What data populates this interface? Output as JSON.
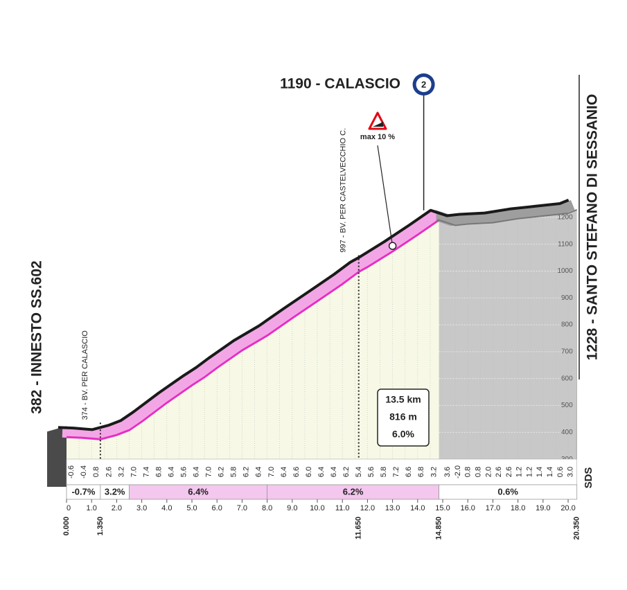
{
  "chart_data": {
    "type": "profile",
    "title": "1190 - CALASCIO",
    "summit_badge": "2",
    "summit_x": 14.85,
    "start_label": "382 - INNESTO SS.602",
    "finish_label": "1228 - SANTO STEFANO DI SESSANIO",
    "annotations": [
      {
        "text": "374 - BV. PER CALASCIO",
        "x": 1.35
      },
      {
        "text": "997 - BV. PER CASTELVECCHIO C.",
        "x": 11.65
      }
    ],
    "max_label": "max 10 %",
    "max_x": 13,
    "stats": [
      "13.5 km",
      "816 m",
      "6.0%"
    ],
    "logo": "SDS",
    "color": "#e62ec4",
    "x": [
      0,
      0.6,
      1.35,
      2.0,
      2.5,
      3.0,
      4.0,
      5.0,
      5.5,
      6.0,
      7.0,
      8.0,
      9.0,
      10.0,
      11.0,
      11.65,
      12.0,
      13.0,
      14.0,
      14.85,
      15.5,
      16.0,
      17.0,
      18.0,
      19.0,
      20.0,
      20.35
    ],
    "values": [
      382,
      380,
      374,
      390,
      408,
      440,
      510,
      575,
      605,
      640,
      705,
      760,
      825,
      888,
      952,
      997,
      1015,
      1073,
      1135,
      1190,
      1170,
      1175,
      1180,
      1195,
      1205,
      1215,
      1228
    ],
    "xlim": [
      0,
      20.35
    ],
    "ylim": [
      205,
      1300
    ],
    "xticks": [
      0,
      {
        "value": 1,
        "label": "1.0"
      },
      {
        "value": 2,
        "label": "2.0"
      },
      {
        "value": 3,
        "label": "3.0"
      },
      {
        "value": 4,
        "label": "4.0"
      },
      {
        "value": 5,
        "label": "5.0"
      },
      {
        "value": 6,
        "label": "6.0"
      },
      {
        "value": 7,
        "label": "7.0"
      },
      {
        "value": 8,
        "label": "8.0"
      },
      {
        "value": 9,
        "label": "9.0"
      },
      {
        "value": 10,
        "label": "10.0"
      },
      {
        "value": 11,
        "label": "11.0"
      },
      {
        "value": 12,
        "label": "12.0"
      },
      {
        "value": 13,
        "label": "13.0"
      },
      {
        "value": 14,
        "label": "14.0"
      },
      {
        "value": 15,
        "label": "15.0"
      },
      {
        "value": 16,
        "label": "16.0"
      },
      {
        "value": 17,
        "label": "17.0"
      },
      {
        "value": 18,
        "label": "18.0"
      },
      {
        "value": 19,
        "label": "19.0"
      },
      {
        "value": 20,
        "label": "20.0"
      }
    ],
    "yticks": [
      300,
      400,
      500,
      600,
      700,
      800,
      900,
      1000,
      1100,
      1200
    ],
    "markers": [
      {
        "value": 0,
        "label": "0.000"
      },
      {
        "value": 1.35,
        "label": "1.350"
      },
      {
        "value": 11.65,
        "label": "11.650"
      },
      {
        "value": 14.85,
        "label": "14.850"
      },
      {
        "value": 20.35,
        "label": "20.350"
      }
    ],
    "grades_climb": [
      "-0.6",
      "-0.4",
      "0.8",
      "2.6",
      "3.2",
      "7.0",
      "7.4",
      "6.8",
      "6.4",
      "5.6",
      "6.4",
      "7.0",
      "6.2",
      "5.8",
      "6.2",
      "6.4",
      "7.0",
      "6.4",
      "6.6",
      "6.0",
      "6.4",
      "6.4",
      "6.2",
      "5.4",
      "5.6",
      "5.8",
      "7.2",
      "6.6",
      "6.8",
      "3.2"
    ],
    "grades_after": [
      "3.6",
      "-2.0",
      "0.8",
      "0.8",
      "2.0",
      "2.6",
      "2.6",
      "1.2",
      "1.2",
      "1.4",
      "1.4",
      "0.6",
      "3.0"
    ],
    "sections": [
      {
        "start": 0,
        "end": 1.35,
        "label": "-0.7%"
      },
      {
        "start": 1.35,
        "end": 2.5,
        "label": "3.2%"
      },
      {
        "start": 2.5,
        "end": 8.0,
        "label": "6.4%"
      },
      {
        "start": 8.0,
        "end": 14.85,
        "label": "6.2%"
      },
      {
        "start": 14.85,
        "end": 20.35,
        "label": "0.6%"
      }
    ]
  }
}
